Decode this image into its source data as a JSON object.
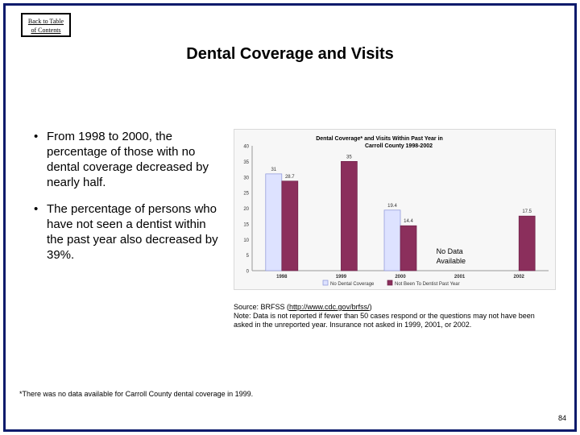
{
  "back_link": {
    "line1": "Back to Table",
    "line2": "of Contents"
  },
  "slide_title": "Dental Coverage and Visits",
  "bullets": [
    "From 1998 to 2000, the percentage of those with no dental coverage decreased by nearly half.",
    "The percentage of persons who have not seen a dentist within the past year also decreased by 39%."
  ],
  "chart_data": {
    "type": "bar",
    "title_line1": "Dental Coverage* and Visits Within Past Year in",
    "title_line2": "Carroll County 1998-2002",
    "categories": [
      "1998",
      "1999",
      "2000",
      "2001",
      "2002"
    ],
    "series": [
      {
        "name": "No Dental Coverage",
        "color": "#dde2ff",
        "stroke": "#8a94d8",
        "values": [
          31,
          null,
          19.4,
          null,
          null
        ],
        "labels": [
          "31",
          "",
          "19.4",
          "",
          ""
        ]
      },
      {
        "name": "Not Been To Dentist Past Year",
        "color": "#8b2f5c",
        "stroke": "#6e2249",
        "values": [
          28.7,
          35,
          14.4,
          null,
          17.5
        ],
        "labels": [
          "28.7",
          "35",
          "14.4",
          "",
          "17.5"
        ]
      }
    ],
    "ylim": [
      0,
      40
    ],
    "yticks": [
      "0",
      "5",
      "10",
      "15",
      "20",
      "25",
      "30",
      "35",
      "40"
    ],
    "annotation_line1": "No Data",
    "annotation_line2": "Available",
    "annotation_category": "2001"
  },
  "source": {
    "prefix": "Source: BRFSS (",
    "link": "http://www.cdc.gov/brfss/",
    "suffix": ")",
    "note": "Note: Data is not reported if fewer than 50 cases respond or the questions may not have been asked in the unreported year.  Insurance not asked in 1999, 2001, or 2002."
  },
  "footnote": "*There was no data available for Carroll County dental coverage in 1999.",
  "page_number": "84",
  "colors": {
    "frame": "#0a1a6b"
  }
}
